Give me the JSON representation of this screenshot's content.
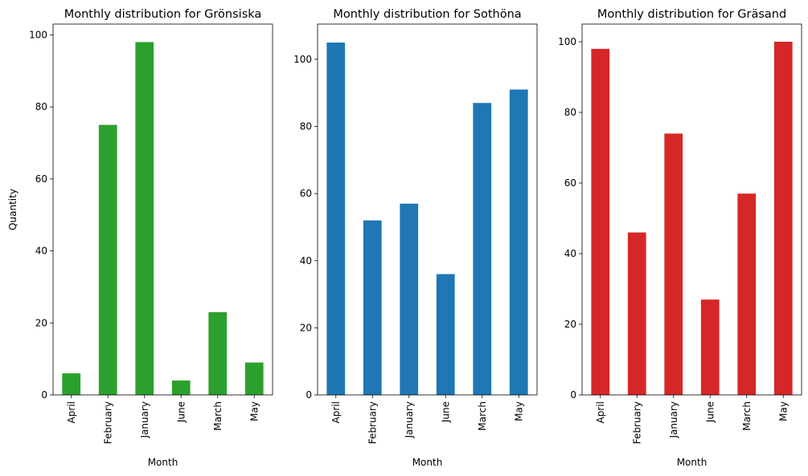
{
  "chart_data": [
    {
      "type": "bar",
      "title": "Monthly distribution for Grönsiska",
      "xlabel": "Month",
      "ylabel": "Quantity",
      "categories": [
        "April",
        "February",
        "January",
        "June",
        "March",
        "May"
      ],
      "values": [
        6,
        75,
        98,
        4,
        23,
        9
      ],
      "ylim": [
        0,
        103
      ],
      "yticks": [
        0,
        20,
        40,
        60,
        80,
        100
      ],
      "color": "#2ca02c",
      "grid": false
    },
    {
      "type": "bar",
      "title": "Monthly distribution for Sothöna",
      "xlabel": "Month",
      "ylabel": "",
      "categories": [
        "April",
        "February",
        "January",
        "June",
        "March",
        "May"
      ],
      "values": [
        105,
        52,
        57,
        36,
        87,
        91
      ],
      "ylim": [
        0,
        110.5
      ],
      "yticks": [
        0,
        20,
        40,
        60,
        80,
        100
      ],
      "color": "#1f77b4",
      "grid": false
    },
    {
      "type": "bar",
      "title": "Monthly distribution for Gräsand",
      "xlabel": "Month",
      "ylabel": "",
      "categories": [
        "April",
        "February",
        "January",
        "June",
        "March",
        "May"
      ],
      "values": [
        98,
        46,
        74,
        27,
        57,
        100
      ],
      "ylim": [
        0,
        105
      ],
      "yticks": [
        0,
        20,
        40,
        60,
        80,
        100
      ],
      "color": "#d62728",
      "grid": false
    }
  ]
}
